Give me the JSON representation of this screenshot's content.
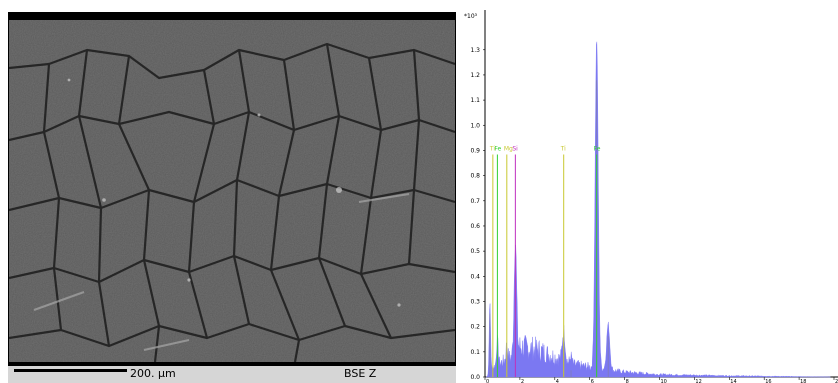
{
  "sem": {
    "scale_label": "200. µm",
    "mode_label": "BSE Z"
  },
  "colors": {
    "spectrum_fill": "#7b78f2",
    "spectrum_alt": "#808090",
    "Ti": "#c8c830",
    "Fe": "#30d030",
    "Mg": "#c8c830",
    "Si": "#c030c0"
  },
  "chart_data": {
    "type": "area",
    "title": "",
    "xlabel": "",
    "ylabel": "",
    "y_multiplier": "*10³",
    "ylim": [
      0,
      1.45
    ],
    "xlim": [
      0,
      20
    ],
    "yticks": [
      "0.0",
      "0.1",
      "0.2",
      "0.3",
      "0.4",
      "0.5",
      "0.6",
      "0.7",
      "0.8",
      "0.9",
      "1.0",
      "1.1",
      "1.2",
      "1.3"
    ],
    "xticks": [
      "0",
      "2",
      "4",
      "6",
      "8",
      "10",
      "12",
      "14",
      "16",
      "18",
      "20"
    ],
    "element_markers": [
      {
        "label": "Ti",
        "energy": 0.45,
        "color": "#c8c830"
      },
      {
        "label": "Fe",
        "energy": 0.71,
        "color": "#30d030"
      },
      {
        "label": "Mg",
        "energy": 1.25,
        "color": "#c8c830"
      },
      {
        "label": "Si",
        "energy": 1.74,
        "color": "#c030c0"
      },
      {
        "label": "Ti",
        "energy": 4.51,
        "color": "#c8c830"
      },
      {
        "label": "Fe",
        "energy": 6.4,
        "color": "#30d030"
      }
    ],
    "series": [
      {
        "peaks": [
          {
            "energy": 0.28,
            "counts": 0.28,
            "width": 0.04
          },
          {
            "energy": 0.71,
            "counts": 0.1,
            "width": 0.05
          },
          {
            "energy": 1.25,
            "counts": 0.06,
            "width": 0.05
          },
          {
            "energy": 1.74,
            "counts": 0.45,
            "width": 0.07
          },
          {
            "energy": 4.51,
            "counts": 0.12,
            "width": 0.08
          },
          {
            "energy": 4.93,
            "counts": 0.03,
            "width": 0.06
          },
          {
            "energy": 6.4,
            "counts": 1.31,
            "width": 0.09
          },
          {
            "energy": 7.06,
            "counts": 0.18,
            "width": 0.09
          }
        ],
        "background": [
          [
            0.1,
            0.0
          ],
          [
            0.5,
            0.04
          ],
          [
            1.0,
            0.06
          ],
          [
            1.5,
            0.08
          ],
          [
            2.0,
            0.12
          ],
          [
            3.0,
            0.11
          ],
          [
            4.0,
            0.08
          ],
          [
            5.0,
            0.05
          ],
          [
            6.0,
            0.04
          ],
          [
            7.0,
            0.03
          ],
          [
            8.0,
            0.02
          ],
          [
            10.0,
            0.01
          ],
          [
            14.0,
            0.005
          ],
          [
            20.0,
            0.0
          ]
        ]
      }
    ]
  }
}
